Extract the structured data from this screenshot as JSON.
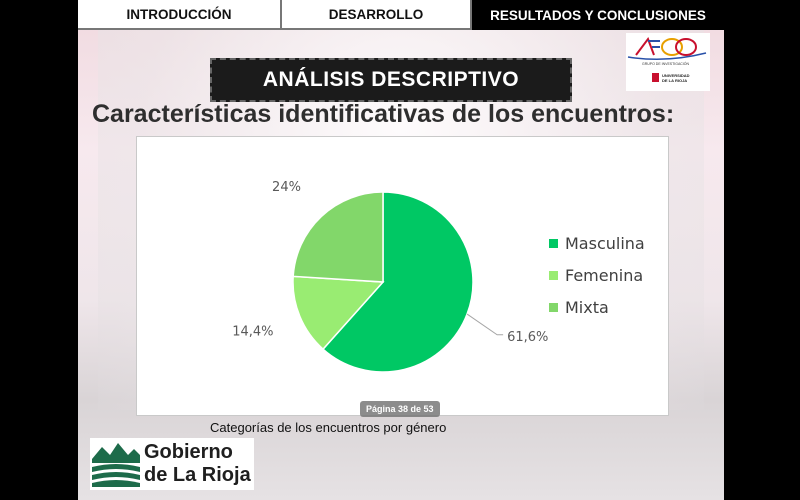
{
  "nav": {
    "tabs": [
      {
        "label": "INTRODUCCIÓN",
        "active": false
      },
      {
        "label": "DESARROLLO",
        "active": false
      },
      {
        "label": "RESULTADOS Y CONCLUSIONES",
        "active": true
      }
    ]
  },
  "section_header": "ANÁLISIS DESCRIPTIVO",
  "subtitle": "Características identificativas de los encuentros:",
  "logo": {
    "research_group": "GRUPO DE INVESTIGACIÓN",
    "university": "UNIVERSIDAD DE LA RIOJA"
  },
  "chart_data": {
    "type": "pie",
    "categories": [
      "Masculina",
      "Femenina",
      "Mixta"
    ],
    "values": [
      61.6,
      14.4,
      24
    ],
    "data_labels": [
      "61,6%",
      "14,4%",
      "24%"
    ],
    "colors": [
      "#00c864",
      "#99ec72",
      "#82d76a"
    ],
    "legend_position": "right"
  },
  "page_indicator": "Página 38 de 53",
  "caption": "Categorías de los encuentros por género",
  "gov_logo": {
    "line1": "Gobierno",
    "line2": "de La Rioja"
  }
}
